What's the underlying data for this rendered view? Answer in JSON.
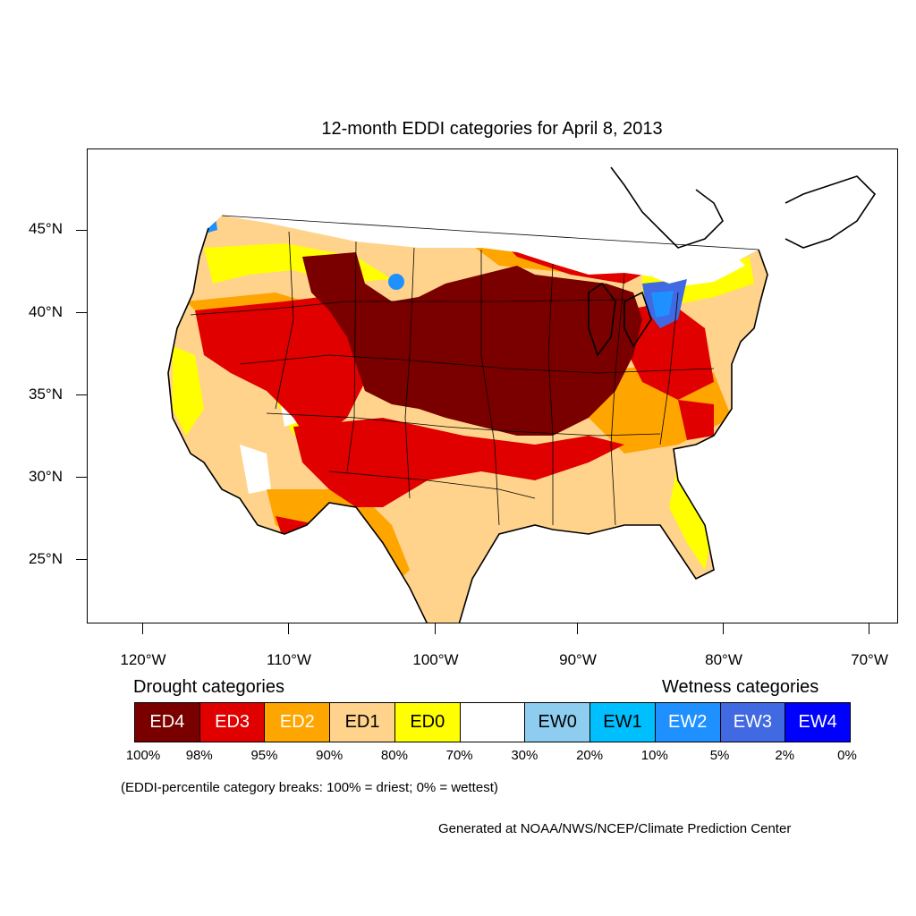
{
  "title": "12-month EDDI categories for April 8, 2013",
  "axes": {
    "lat_labels": [
      "45°N",
      "40°N",
      "35°N",
      "30°N",
      "25°N"
    ],
    "lon_labels": [
      "120°W",
      "110°W",
      "100°W",
      "90°W",
      "80°W",
      "70°W"
    ]
  },
  "legend": {
    "drought_title": "Drought categories",
    "wetness_title": "Wetness categories",
    "categories": [
      {
        "label": "ED4",
        "color": "#7a0000",
        "text_color": "#ffffff"
      },
      {
        "label": "ED3",
        "color": "#e00000",
        "text_color": "#ffffff"
      },
      {
        "label": "ED2",
        "color": "#ffa500",
        "text_color": "#ffffff"
      },
      {
        "label": "ED1",
        "color": "#ffd38c",
        "text_color": "#000000"
      },
      {
        "label": "ED0",
        "color": "#ffff00",
        "text_color": "#000000"
      },
      {
        "label": "",
        "color": "#ffffff",
        "text_color": "#000000"
      },
      {
        "label": "EW0",
        "color": "#8ecdf0",
        "text_color": "#000000"
      },
      {
        "label": "EW1",
        "color": "#00bfff",
        "text_color": "#000000"
      },
      {
        "label": "EW2",
        "color": "#1e90ff",
        "text_color": "#ffffff"
      },
      {
        "label": "EW3",
        "color": "#4169e1",
        "text_color": "#ffffff"
      },
      {
        "label": "EW4",
        "color": "#0000ff",
        "text_color": "#ffffff"
      }
    ],
    "breaks": [
      "100%",
      "98%",
      "95%",
      "90%",
      "80%",
      "70%",
      "30%",
      "20%",
      "10%",
      "5%",
      "2%",
      "0%"
    ],
    "note": "(EDDI-percentile category breaks: 100% = driest; 0% = wettest)"
  },
  "credit": "Generated at NOAA/NWS/NCEP/Climate Prediction Center"
}
